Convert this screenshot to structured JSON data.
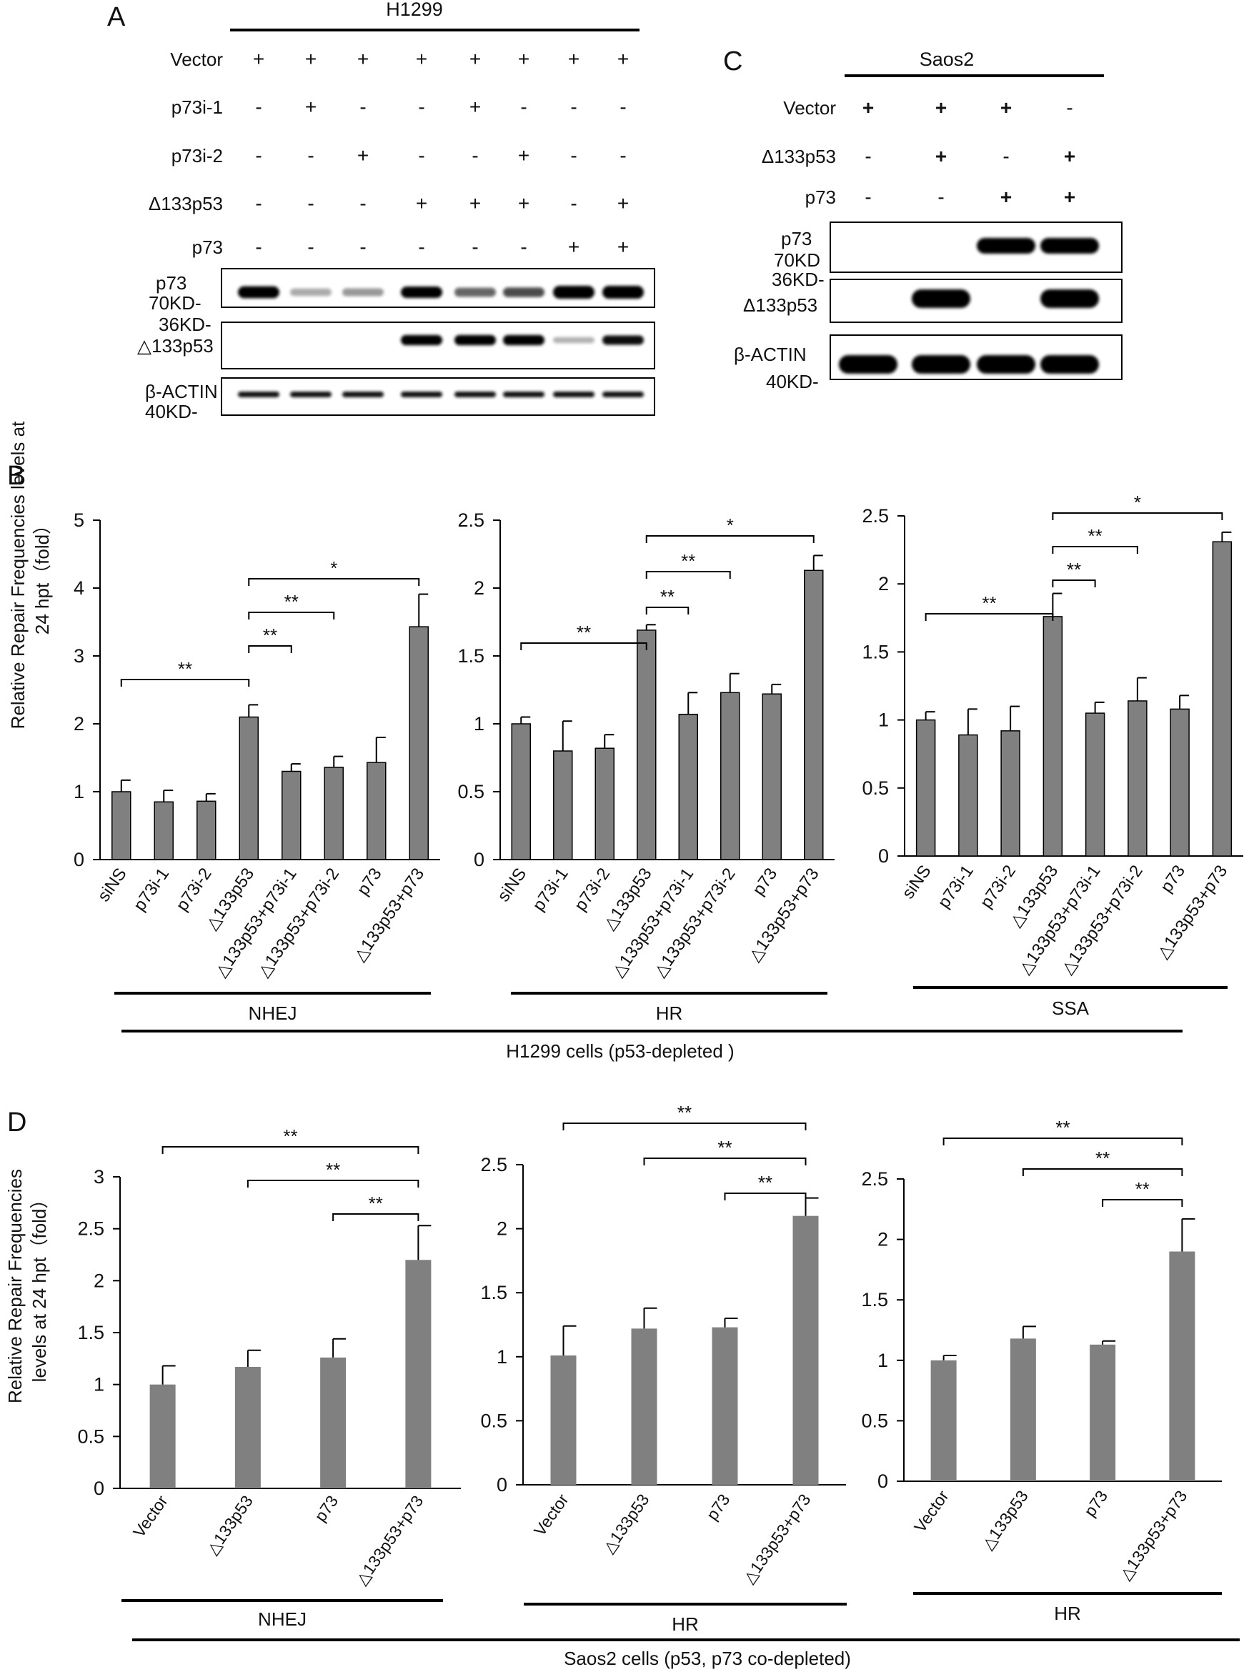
{
  "panels": {
    "A": "A",
    "B": "B",
    "C": "C",
    "D": "D"
  },
  "blot_a": {
    "cell_line": "H1299",
    "treatment_labels": [
      "Vector",
      "p73i-1",
      "p73i-2",
      "Δ133p53",
      "p73"
    ],
    "signs": [
      [
        "+",
        "+",
        "+",
        "+",
        "+",
        "+",
        "+",
        "+"
      ],
      [
        "-",
        "+",
        "-",
        "-",
        "+",
        "-",
        "-",
        "-"
      ],
      [
        "-",
        "-",
        "+",
        "-",
        "-",
        "+",
        "-",
        "-"
      ],
      [
        "-",
        "-",
        "-",
        "+",
        "+",
        "+",
        "-",
        "+"
      ],
      [
        "-",
        "-",
        "-",
        "-",
        "-",
        "-",
        "+",
        "+"
      ]
    ],
    "bands": {
      "p73": [
        0.85,
        0.08,
        0.15,
        0.75,
        0.35,
        0.45,
        1.0,
        1.0
      ],
      "d133p53": [
        0.0,
        0.0,
        0.0,
        0.9,
        0.9,
        0.9,
        0.05,
        0.7
      ],
      "actin": [
        0.7,
        0.7,
        0.7,
        0.7,
        0.7,
        0.7,
        0.7,
        0.7
      ]
    },
    "strips": {
      "p73_name": "p73",
      "p73_marker": "70KD-",
      "d133_marker": "36KD-",
      "d133_name": "△133p53",
      "actin_name": "β-ACTIN",
      "actin_marker": "40KD-"
    }
  },
  "blot_c": {
    "cell_line": "Saos2",
    "treatment_labels": [
      "Vector",
      "Δ133p53",
      "p73"
    ],
    "signs": [
      [
        "+",
        "+",
        "+",
        "-"
      ],
      [
        "-",
        "+",
        "-",
        "+"
      ],
      [
        "-",
        "-",
        "+",
        "+"
      ]
    ],
    "bands": {
      "p73": [
        0.0,
        0.0,
        1.0,
        1.0
      ],
      "d133p53": [
        0.0,
        1.0,
        0.0,
        1.0
      ],
      "actin": [
        1.0,
        1.0,
        1.0,
        1.0
      ]
    },
    "strips": {
      "p73_name": "p73",
      "p73_marker": "70KD",
      "d133_marker": "36KD-",
      "d133_name": "Δ133p53",
      "actin_name": "β-ACTIN",
      "actin_marker": "40KD-"
    }
  },
  "row_b": {
    "ylabel_lines": [
      "Relative  Repair Frequencies levels at",
      "24 hpt（fold）"
    ],
    "group_label": "H1299 cells (p53-depleted )"
  },
  "row_d": {
    "ylabel_lines": [
      "Relative  Repair Frequencies",
      "levels at 24 hpt（fold）"
    ],
    "group_label": "Saos2 cells (p53, p73 co-depleted)"
  },
  "chart_data": [
    {
      "type": "bar",
      "id": "B1",
      "categories": [
        "siNS",
        "p73i-1",
        "p73i-2",
        "△133p53",
        "△133p53+p73i-1",
        "△133p53+p73i-2",
        "p73",
        "△133p53+p73"
      ],
      "values": [
        1.0,
        0.85,
        0.86,
        2.1,
        1.3,
        1.36,
        1.43,
        3.43
      ],
      "errors": [
        0.17,
        0.17,
        0.11,
        0.18,
        0.11,
        0.16,
        0.37,
        0.48
      ],
      "ylim": [
        0,
        5
      ],
      "yticks": [
        "0",
        "1",
        "2",
        "3",
        "4",
        "5"
      ],
      "xlabel": "NHEJ",
      "ylabel": "Relative Repair Frequencies levels at 24 hpt (fold)",
      "significance": [
        {
          "from": 0,
          "to": 3,
          "label": "**"
        },
        {
          "from": 3,
          "to": 4,
          "label": "**"
        },
        {
          "from": 3,
          "to": 5,
          "label": "**"
        },
        {
          "from": 3,
          "to": 7,
          "label": "*"
        }
      ]
    },
    {
      "type": "bar",
      "id": "B2",
      "categories": [
        "siNS",
        "p73i-1",
        "p73i-2",
        "△133p53",
        "△133p53+p73i-1",
        "△133p53+p73i-2",
        "p73",
        "△133p53+p73"
      ],
      "values": [
        1.0,
        0.8,
        0.82,
        1.69,
        1.07,
        1.23,
        1.22,
        2.13
      ],
      "errors": [
        0.05,
        0.22,
        0.1,
        0.04,
        0.16,
        0.14,
        0.07,
        0.11
      ],
      "ylim": [
        0,
        2.5
      ],
      "yticks": [
        "0",
        "0.5",
        "1",
        "1.5",
        "2",
        "2.5"
      ],
      "xlabel": "HR",
      "significance": [
        {
          "from": 0,
          "to": 3,
          "label": "**"
        },
        {
          "from": 3,
          "to": 4,
          "label": "**"
        },
        {
          "from": 3,
          "to": 5,
          "label": "**"
        },
        {
          "from": 3,
          "to": 7,
          "label": "*"
        }
      ]
    },
    {
      "type": "bar",
      "id": "B3",
      "categories": [
        "siNS",
        "p73i-1",
        "p73i-2",
        "△133p53",
        "△133p53+p73i-1",
        "△133p53+p73i-2",
        "p73",
        "△133p53+p73"
      ],
      "values": [
        1.0,
        0.89,
        0.92,
        1.76,
        1.05,
        1.14,
        1.08,
        2.31
      ],
      "errors": [
        0.06,
        0.19,
        0.18,
        0.17,
        0.08,
        0.17,
        0.1,
        0.07
      ],
      "ylim": [
        0,
        2.5
      ],
      "yticks": [
        "0",
        "0.5",
        "1",
        "1.5",
        "2",
        "2.5"
      ],
      "xlabel": "SSA",
      "significance": [
        {
          "from": 0,
          "to": 3,
          "label": "**"
        },
        {
          "from": 3,
          "to": 4,
          "label": "**"
        },
        {
          "from": 3,
          "to": 5,
          "label": "**"
        },
        {
          "from": 3,
          "to": 7,
          "label": "*"
        }
      ]
    },
    {
      "type": "bar",
      "id": "D1",
      "categories": [
        "Vector",
        "△133p53",
        "p73",
        "△133p53+p73"
      ],
      "values": [
        1.0,
        1.17,
        1.26,
        2.2
      ],
      "errors": [
        0.18,
        0.16,
        0.18,
        0.33
      ],
      "ylim": [
        0,
        3
      ],
      "yticks": [
        "0",
        "0.5",
        "1",
        "1.5",
        "2",
        "2.5",
        "3"
      ],
      "xlabel": "NHEJ",
      "ylabel": "Relative Repair Frequencies levels at 24 hpt (fold)",
      "significance": [
        {
          "from": 0,
          "to": 3,
          "label": "**"
        },
        {
          "from": 1,
          "to": 3,
          "label": "**"
        },
        {
          "from": 2,
          "to": 3,
          "label": "**"
        }
      ]
    },
    {
      "type": "bar",
      "id": "D2",
      "categories": [
        "Vector",
        "△133p53",
        "p73",
        "△133p53+p73"
      ],
      "values": [
        1.01,
        1.22,
        1.23,
        2.1
      ],
      "errors": [
        0.23,
        0.16,
        0.07,
        0.14
      ],
      "ylim": [
        0,
        2.5
      ],
      "yticks": [
        "0",
        "0.5",
        "1",
        "1.5",
        "2",
        "2.5"
      ],
      "xlabel": "HR",
      "significance": [
        {
          "from": 0,
          "to": 3,
          "label": "**"
        },
        {
          "from": 1,
          "to": 3,
          "label": "**"
        },
        {
          "from": 2,
          "to": 3,
          "label": "**"
        }
      ]
    },
    {
      "type": "bar",
      "id": "D3",
      "categories": [
        "Vector",
        "△133p53",
        "p73",
        "△133p53+p73"
      ],
      "values": [
        1.0,
        1.18,
        1.13,
        1.9
      ],
      "errors": [
        0.04,
        0.1,
        0.03,
        0.27
      ],
      "ylim": [
        0,
        2.5
      ],
      "yticks": [
        "0",
        "0.5",
        "1",
        "1.5",
        "2",
        "2.5"
      ],
      "xlabel": "HR",
      "significance": [
        {
          "from": 0,
          "to": 3,
          "label": "**"
        },
        {
          "from": 1,
          "to": 3,
          "label": "**"
        },
        {
          "from": 2,
          "to": 3,
          "label": "**"
        }
      ]
    }
  ]
}
